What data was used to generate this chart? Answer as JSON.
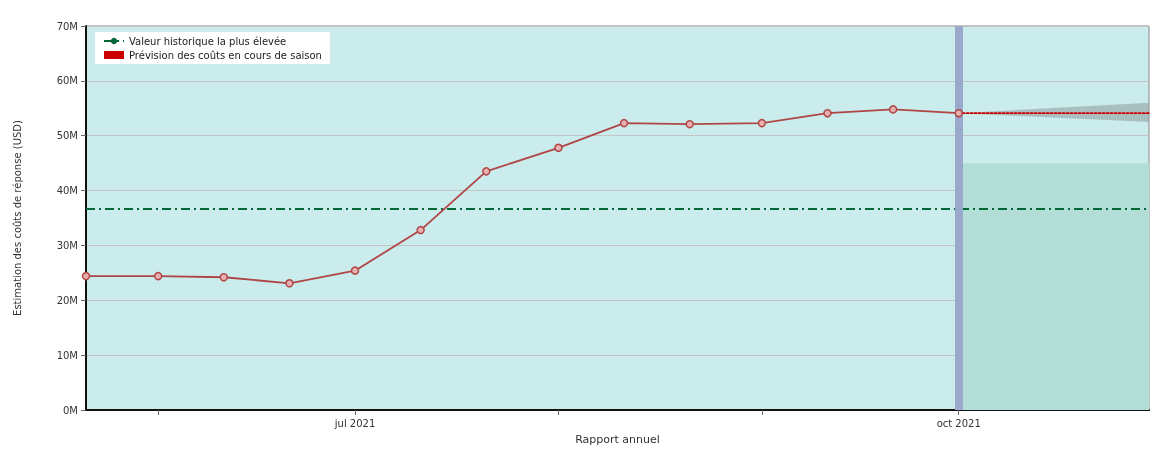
{
  "chart_data": {
    "type": "line",
    "xlabel": "Rapport annuel",
    "ylabel": "Estimation des coûts de réponse (USD)",
    "xlim": [
      "2021-05-21",
      "2021-10-30"
    ],
    "xticks": [
      {
        "value": "2021-06-01",
        "label": null
      },
      {
        "value": "2021-07-01",
        "label": "jul 2021"
      },
      {
        "value": "2021-08-01",
        "label": null
      },
      {
        "value": "2021-09-01",
        "label": null
      },
      {
        "value": "2021-10-01",
        "label": "oct 2021"
      }
    ],
    "ylim": [
      0,
      70
    ],
    "yticks": [
      {
        "value": 0,
        "label": "0M"
      },
      {
        "value": 10,
        "label": "10M"
      },
      {
        "value": 20,
        "label": "20M"
      },
      {
        "value": 30,
        "label": "30M"
      },
      {
        "value": 40,
        "label": "40M"
      },
      {
        "value": 50,
        "label": "50M"
      },
      {
        "value": 60,
        "label": "60M"
      },
      {
        "value": 70,
        "label": "70M"
      }
    ],
    "series": [
      {
        "type": "area",
        "color": "#b3ded8",
        "x": [
          "2021-10-01",
          "2021-10-30"
        ],
        "values": [
          45,
          45
        ],
        "marker": "none"
      },
      {
        "color": "#b04545",
        "marker": "circle",
        "line_style": "solid",
        "x": [
          "2021-05-21",
          "2021-06-01",
          "2021-06-11",
          "2021-06-21",
          "2021-07-01",
          "2021-07-11",
          "2021-07-21",
          "2021-08-01",
          "2021-08-11",
          "2021-08-21",
          "2021-09-01",
          "2021-09-11",
          "2021-09-21",
          "2021-10-01"
        ],
        "values": [
          24.4,
          24.4,
          24.2,
          23.1,
          25.4,
          32.8,
          43.5,
          47.8,
          52.3,
          52.1,
          52.3,
          54.1,
          54.8,
          54.1
        ]
      },
      {
        "name": "Prévision des coûts en cours de saison",
        "color": "#cc0000",
        "marker": "none",
        "line_style": "dotted",
        "x": [
          "2021-10-01",
          "2021-10-30"
        ],
        "values": [
          54.1,
          54.1
        ],
        "lower": [
          54.1,
          52.5
        ],
        "upper": [
          54.1,
          56.0
        ]
      }
    ],
    "ref_lines": [
      {
        "axis": "y",
        "value": 36.6,
        "label": "Valeur historique la plus élevée",
        "color": "#006837",
        "line_style": "dashed"
      },
      {
        "axis": "x",
        "value": "2021-10-01",
        "label": null,
        "color": "#9aa8cc",
        "line_style": "solid"
      }
    ],
    "grid": "y",
    "legend": "top left"
  }
}
